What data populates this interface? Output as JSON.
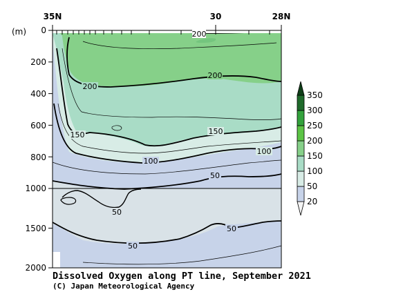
{
  "chart_data": {
    "type": "contour-section",
    "title": "Dissolved Oxygen along PT line, September 2021",
    "credit": "(C) Japan Meteorological Agency",
    "x_axis": {
      "top_labels": [
        "35N",
        "30",
        "28N"
      ],
      "range_lat": [
        35,
        28
      ]
    },
    "y_axis": {
      "unit_label": "(m)",
      "ticks": [
        "0",
        "200",
        "400",
        "600",
        "800",
        "1000",
        "1500",
        "2000"
      ],
      "upper_range": [
        0,
        1000
      ],
      "lower_range": [
        1000,
        2000
      ]
    },
    "colorbar": {
      "levels": [
        "20",
        "50",
        "100",
        "150",
        "200",
        "250",
        "300",
        "350"
      ],
      "colors": [
        "#f4f4f4",
        "#c7d3e9",
        "#d8ece6",
        "#a9dcc6",
        "#86d089",
        "#5cc445",
        "#33a23c",
        "#1f6a2b"
      ]
    },
    "contour_labels": [
      {
        "id": "c200-surface",
        "text": "200"
      },
      {
        "id": "c200-mid",
        "text": "200"
      },
      {
        "id": "c200-left",
        "text": "200"
      },
      {
        "id": "c150-left",
        "text": "150"
      },
      {
        "id": "c150-right",
        "text": "150"
      },
      {
        "id": "c100-mid",
        "text": "100"
      },
      {
        "id": "c100-right",
        "text": "100"
      },
      {
        "id": "c50-upper",
        "text": "50"
      },
      {
        "id": "c50-tongue",
        "text": "50"
      },
      {
        "id": "c50-deep-right",
        "text": "50"
      },
      {
        "id": "c50-deep-mid",
        "text": "50"
      }
    ]
  }
}
